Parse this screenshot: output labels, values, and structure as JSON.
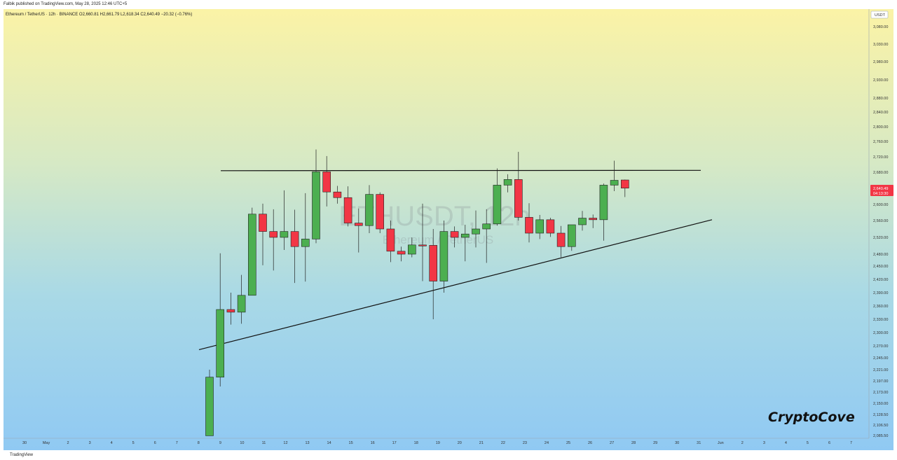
{
  "header": {
    "published_line": "Falbik published on TradingView.com, May 28, 2025 12:46 UTC+5"
  },
  "footer": {
    "brand_label": "TradingView"
  },
  "chart_data": {
    "type": "candlestick",
    "symbol_line": "Ethereum / TetherUS · 12h · BINANCE  O2,660.81  H2,661.79  L2,618.34  C2,640.49  −20.32 (−0.76%)",
    "watermark_symbol": "ETHUSDT, 12h",
    "watermark_name": "Ethereum / TetherUS",
    "brand_text": "CryptoCove",
    "currency_label": "USDT",
    "price_tag": {
      "value": "2,640.49",
      "countdown": "04:13:30",
      "color": "#f23645"
    },
    "colors": {
      "up": "#4caf50",
      "down": "#f23645",
      "outline": "#222222",
      "trendline": "#111111"
    },
    "y_ticks": [
      "3,080.00",
      "3,030.00",
      "2,980.00",
      "2,930.00",
      "2,880.00",
      "2,840.00",
      "2,800.00",
      "2,760.00",
      "2,720.00",
      "2,680.00",
      "2,640.00",
      "2,600.00",
      "2,560.00",
      "2,520.00",
      "2,480.00",
      "2,450.00",
      "2,420.00",
      "2,390.00",
      "2,360.00",
      "2,330.00",
      "2,300.00",
      "2,270.00",
      "2,245.00",
      "2,221.00",
      "2,197.00",
      "2,173.00",
      "2,150.00",
      "2,128.50",
      "2,106.50",
      "2,085.50"
    ],
    "x_ticks": [
      "30",
      "May",
      "2",
      "3",
      "4",
      "5",
      "6",
      "7",
      "8",
      "9",
      "10",
      "11",
      "12",
      "13",
      "14",
      "15",
      "16",
      "17",
      "18",
      "19",
      "20",
      "21",
      "22",
      "23",
      "24",
      "25",
      "26",
      "27",
      "28",
      "29",
      "30",
      "31",
      "Jun",
      "2",
      "3",
      "4",
      "5",
      "6",
      "7"
    ],
    "candles": [
      {
        "o": 2085,
        "h": 2221,
        "l": 2085,
        "c": 2205
      },
      {
        "o": 2205,
        "h": 2482,
        "l": 2185,
        "c": 2352
      },
      {
        "o": 2352,
        "h": 2390,
        "l": 2318,
        "c": 2346
      },
      {
        "o": 2346,
        "h": 2430,
        "l": 2320,
        "c": 2384
      },
      {
        "o": 2384,
        "h": 2592,
        "l": 2384,
        "c": 2576
      },
      {
        "o": 2576,
        "h": 2602,
        "l": 2452,
        "c": 2534
      },
      {
        "o": 2534,
        "h": 2588,
        "l": 2440,
        "c": 2520
      },
      {
        "o": 2520,
        "h": 2635,
        "l": 2490,
        "c": 2534
      },
      {
        "o": 2534,
        "h": 2587,
        "l": 2412,
        "c": 2498
      },
      {
        "o": 2498,
        "h": 2628,
        "l": 2415,
        "c": 2516
      },
      {
        "o": 2516,
        "h": 2739,
        "l": 2506,
        "c": 2681
      },
      {
        "o": 2681,
        "h": 2722,
        "l": 2595,
        "c": 2631
      },
      {
        "o": 2631,
        "h": 2646,
        "l": 2602,
        "c": 2617
      },
      {
        "o": 2617,
        "h": 2645,
        "l": 2546,
        "c": 2554
      },
      {
        "o": 2554,
        "h": 2590,
        "l": 2484,
        "c": 2548
      },
      {
        "o": 2548,
        "h": 2648,
        "l": 2530,
        "c": 2625
      },
      {
        "o": 2625,
        "h": 2630,
        "l": 2530,
        "c": 2540
      },
      {
        "o": 2540,
        "h": 2560,
        "l": 2460,
        "c": 2487
      },
      {
        "o": 2487,
        "h": 2498,
        "l": 2462,
        "c": 2480
      },
      {
        "o": 2480,
        "h": 2520,
        "l": 2472,
        "c": 2502
      },
      {
        "o": 2502,
        "h": 2602,
        "l": 2416,
        "c": 2501
      },
      {
        "o": 2501,
        "h": 2540,
        "l": 2330,
        "c": 2416
      },
      {
        "o": 2416,
        "h": 2560,
        "l": 2390,
        "c": 2534
      },
      {
        "o": 2534,
        "h": 2546,
        "l": 2496,
        "c": 2520
      },
      {
        "o": 2520,
        "h": 2550,
        "l": 2462,
        "c": 2528
      },
      {
        "o": 2528,
        "h": 2585,
        "l": 2496,
        "c": 2540
      },
      {
        "o": 2540,
        "h": 2588,
        "l": 2458,
        "c": 2552
      },
      {
        "o": 2552,
        "h": 2690,
        "l": 2548,
        "c": 2648
      },
      {
        "o": 2648,
        "h": 2675,
        "l": 2630,
        "c": 2662
      },
      {
        "o": 2662,
        "h": 2733,
        "l": 2560,
        "c": 2568
      },
      {
        "o": 2568,
        "h": 2603,
        "l": 2508,
        "c": 2530
      },
      {
        "o": 2530,
        "h": 2574,
        "l": 2516,
        "c": 2562
      },
      {
        "o": 2562,
        "h": 2567,
        "l": 2521,
        "c": 2530
      },
      {
        "o": 2530,
        "h": 2547,
        "l": 2472,
        "c": 2498
      },
      {
        "o": 2498,
        "h": 2550,
        "l": 2488,
        "c": 2550
      },
      {
        "o": 2550,
        "h": 2584,
        "l": 2536,
        "c": 2566
      },
      {
        "o": 2566,
        "h": 2575,
        "l": 2542,
        "c": 2562
      },
      {
        "o": 2562,
        "h": 2652,
        "l": 2512,
        "c": 2648
      },
      {
        "o": 2648,
        "h": 2710,
        "l": 2633,
        "c": 2660
      },
      {
        "o": 2660.81,
        "h": 2661.79,
        "l": 2618.34,
        "c": 2640.49
      }
    ],
    "resistance_line": {
      "y": 2684
    },
    "support_line": {
      "y_start": 2262,
      "y_end": 2562
    }
  }
}
